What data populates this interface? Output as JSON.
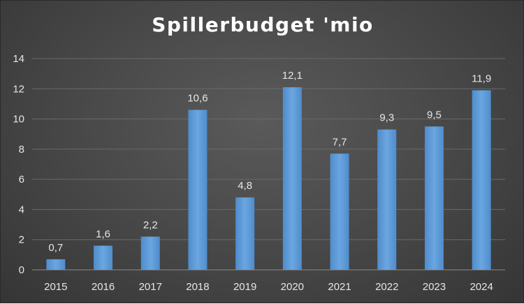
{
  "chart_data": {
    "type": "bar",
    "title": "Spillerbudget 'mio",
    "categories": [
      "2015",
      "2016",
      "2017",
      "2018",
      "2019",
      "2020",
      "2021",
      "2022",
      "2023",
      "2024"
    ],
    "values": [
      0.7,
      1.6,
      2.2,
      10.6,
      4.8,
      12.1,
      7.7,
      9.3,
      9.5,
      11.9
    ],
    "data_labels": [
      "0,7",
      "1,6",
      "2,2",
      "10,6",
      "4,8",
      "12,1",
      "7,7",
      "9,3",
      "9,5",
      "11,9"
    ],
    "ylim": [
      0,
      14
    ],
    "yticks": [
      "0",
      "2",
      "4",
      "6",
      "8",
      "10",
      "12",
      "14"
    ],
    "grid": true,
    "legend": "none",
    "bar_color": "#5b9bd5",
    "background_color": "#404040"
  }
}
